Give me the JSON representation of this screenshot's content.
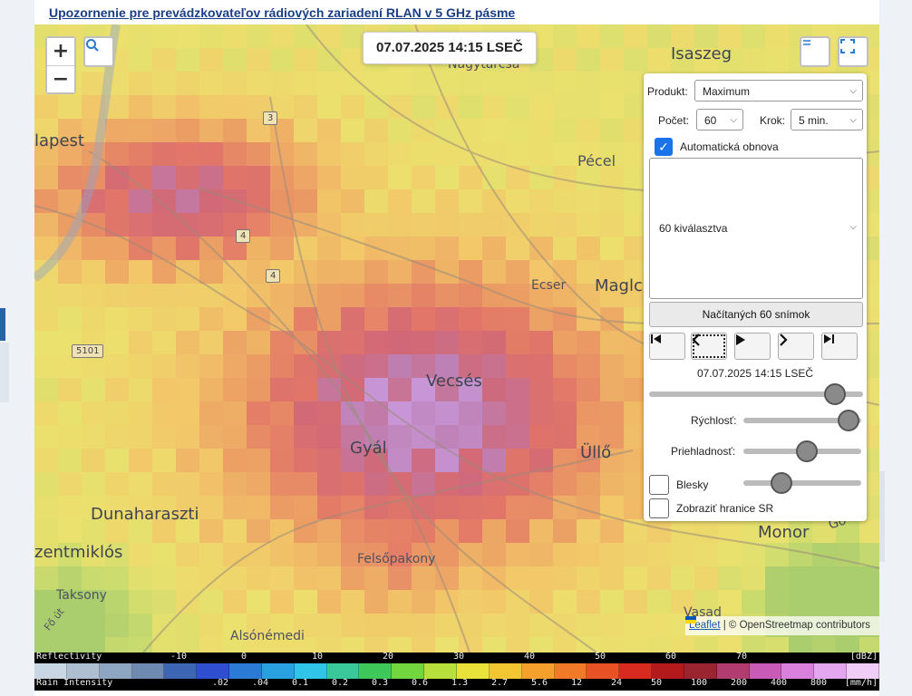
{
  "notice_link": "Upozornenie pre prevádzkovateľov rádiových zariadení RLAN v 5 GHz pásme",
  "map": {
    "timestamp": "07.07.2025 14:15 LSEČ",
    "zoom_in": "+",
    "zoom_out": "−",
    "places": {
      "isaszeg": "Isaszeg",
      "nagytarcsa": "Nagytarcsa",
      "budapest": "lapest",
      "pecel": "Pécel",
      "ecser": "Ecser",
      "maglod": "Maglc",
      "vecses": "Vecsés",
      "gyal": "Gyál",
      "ullo": "Üllő",
      "dunaharaszti": "Dunaharaszti",
      "szentmiklos": "zentmiklós",
      "felsopakony": "Felsőpakony",
      "taksony": "Taksony",
      "alsonemedi": "Alsónémedi",
      "monor": "Monor",
      "vasad": "Vasad",
      "go": "Gö",
      "fout": "Fő út"
    },
    "road_shields": {
      "r3": "3",
      "r4a": "4",
      "r4b": "4",
      "r5101": "5101"
    }
  },
  "panel": {
    "produkt_label": "Produkt:",
    "produkt_value": "Maximum",
    "pocet_label": "Počet:",
    "pocet_value": "60",
    "krok_label": "Krok:",
    "krok_value": "5 min.",
    "auto_refresh_label": "Automatická obnova",
    "auto_refresh_checked": true,
    "selection_value": "60 kiválasztva",
    "loaded_button": "Načítaných 60 snímok",
    "frame_time": "07.07.2025 14:15 LSEČ",
    "time_position": 0.91,
    "speed_label": "Rýchlosť:",
    "speed_level": 0.98,
    "opacity_label": "Priehladnosť:",
    "opacity_level": 0.55,
    "lightning_label": "Blesky",
    "lightning_checked": false,
    "lightning_level": 0.28,
    "borders_label": "Zobraziť hranice SR",
    "borders_checked": false
  },
  "attribution": {
    "leaflet": "Leaflet",
    "rest": "| © OpenStreetmap contributors"
  },
  "legend": {
    "reflectivity_label": "Reflectivity",
    "reflectivity_ticks": [
      "-10",
      "0",
      "10",
      "20",
      "30",
      "40",
      "50",
      "60",
      "70"
    ],
    "reflectivity_unit": "[dBZ]",
    "rain_label": "Rain Intensity",
    "rain_ticks": [
      ".02",
      ".04",
      "0.1",
      "0.2",
      "0.3",
      "0.6",
      "1.3",
      "2.7",
      "5.6",
      "12",
      "24",
      "50",
      "100",
      "200",
      "400",
      "800"
    ],
    "rain_unit": "[mm/h]",
    "colors": [
      "#c9d6e3",
      "#aebfd2",
      "#8fa6c2",
      "#6f8ab0",
      "#3c66b4",
      "#2f4fd0",
      "#2b7bd6",
      "#29a0e0",
      "#30c4e8",
      "#38c89a",
      "#3ec85a",
      "#72d63e",
      "#b8e03c",
      "#e8e23a",
      "#f2c632",
      "#f5a02c",
      "#f07a28",
      "#e85224",
      "#d92a20",
      "#b41a1c",
      "#9a2430",
      "#b23c70",
      "#c85ab8",
      "#d880dc",
      "#e4a6ee",
      "#f0cdf6"
    ]
  }
}
